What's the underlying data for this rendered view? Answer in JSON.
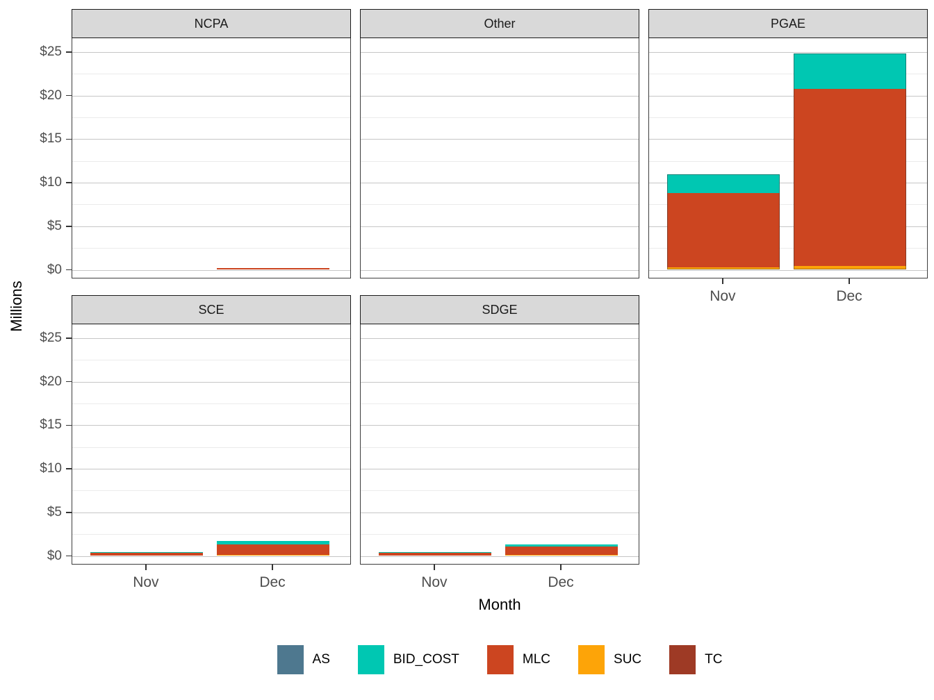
{
  "axis": {
    "x_title": "Month",
    "y_title": "Millions"
  },
  "chart_data": {
    "type": "bar",
    "stacked": true,
    "title": "",
    "xlabel": "Month",
    "ylabel": "Millions",
    "categories": [
      "Nov",
      "Dec"
    ],
    "ylim": [
      0,
      25
    ],
    "ytick_values": [
      0,
      5,
      10,
      15,
      20,
      25
    ],
    "ytick_labels": [
      "$0",
      "$5",
      "$10",
      "$15",
      "$20",
      "$25"
    ],
    "minor_tick_values": [
      2.5,
      7.5,
      12.5,
      17.5,
      22.5
    ],
    "grid": true,
    "legend_position": "bottom",
    "stack_order_bottom_to_top": [
      "TC",
      "SUC",
      "MLC",
      "BID_COST",
      "AS"
    ],
    "colors": {
      "AS": "#4e788f",
      "BID_COST": "#00c7b2",
      "MLC": "#cc4520",
      "SUC": "#fda408",
      "TC": "#9e3a25"
    },
    "facets": [
      {
        "title": "NCPA",
        "row": 0,
        "col": 0,
        "show_x_axis": false,
        "show_y_axis": true,
        "bars": [
          {
            "month": "Nov",
            "segments": {
              "AS": 0,
              "BID_COST": 0,
              "MLC": 0,
              "SUC": 0,
              "TC": 0
            }
          },
          {
            "month": "Dec",
            "segments": {
              "AS": 0,
              "BID_COST": 0,
              "MLC": 0.1,
              "SUC": 0,
              "TC": 0
            }
          }
        ]
      },
      {
        "title": "Other",
        "row": 0,
        "col": 1,
        "show_x_axis": false,
        "show_y_axis": false,
        "bars": [
          {
            "month": "Nov",
            "segments": {
              "AS": 0,
              "BID_COST": 0,
              "MLC": 0,
              "SUC": 0,
              "TC": 0
            }
          },
          {
            "month": "Dec",
            "segments": {
              "AS": 0,
              "BID_COST": 0,
              "MLC": 0,
              "SUC": 0,
              "TC": 0
            }
          }
        ]
      },
      {
        "title": "PGAE",
        "row": 0,
        "col": 2,
        "show_x_axis": true,
        "show_y_axis": false,
        "bars": [
          {
            "month": "Nov",
            "segments": {
              "AS": 0,
              "BID_COST": 2.2,
              "MLC": 8.5,
              "SUC": 0.2,
              "TC": 0
            }
          },
          {
            "month": "Dec",
            "segments": {
              "AS": 0,
              "BID_COST": 4.1,
              "MLC": 20.3,
              "SUC": 0.4,
              "TC": 0
            }
          }
        ]
      },
      {
        "title": "SCE",
        "row": 1,
        "col": 0,
        "show_x_axis": true,
        "show_y_axis": true,
        "bars": [
          {
            "month": "Nov",
            "segments": {
              "AS": 0,
              "BID_COST": 0.15,
              "MLC": 0.25,
              "SUC": 0,
              "TC": 0
            }
          },
          {
            "month": "Dec",
            "segments": {
              "AS": 0,
              "BID_COST": 0.4,
              "MLC": 1.2,
              "SUC": 0.05,
              "TC": 0
            }
          }
        ]
      },
      {
        "title": "SDGE",
        "row": 1,
        "col": 1,
        "show_x_axis": true,
        "show_y_axis": false,
        "bars": [
          {
            "month": "Nov",
            "segments": {
              "AS": 0,
              "BID_COST": 0.15,
              "MLC": 0.25,
              "SUC": 0,
              "TC": 0
            }
          },
          {
            "month": "Dec",
            "segments": {
              "AS": 0,
              "BID_COST": 0.3,
              "MLC": 0.95,
              "SUC": 0.03,
              "TC": 0
            }
          }
        ]
      }
    ]
  },
  "legend": {
    "items": [
      {
        "label": "AS"
      },
      {
        "label": "BID_COST"
      },
      {
        "label": "MLC"
      },
      {
        "label": "SUC"
      },
      {
        "label": "TC"
      }
    ]
  }
}
